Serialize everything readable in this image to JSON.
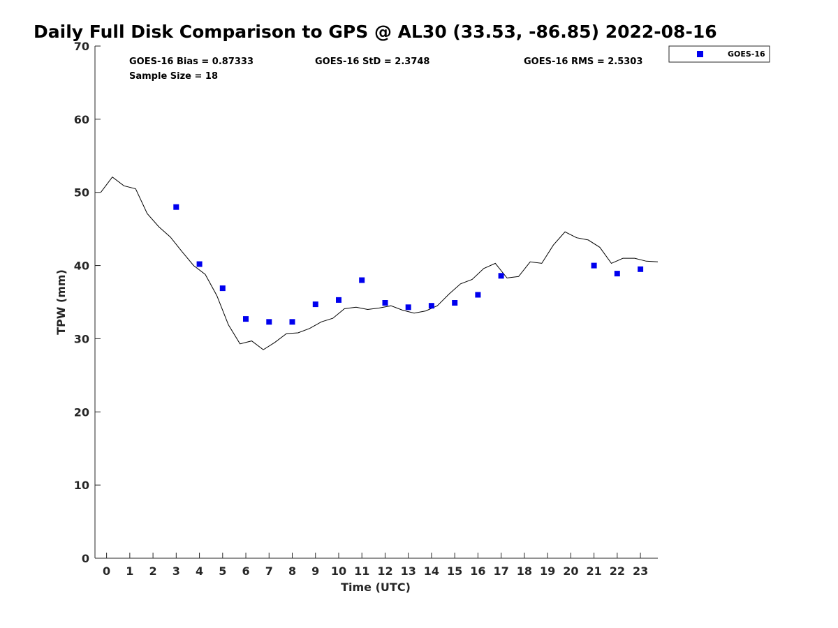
{
  "chart_data": {
    "type": "scatter",
    "title": "Daily Full Disk Comparison to GPS @ AL30 (33.53, -86.85) 2022-08-16",
    "xlabel": "Time (UTC)",
    "ylabel": "TPW (mm)",
    "xlim": [
      -0.5,
      23.75
    ],
    "ylim": [
      0,
      70
    ],
    "xticks": [
      0,
      1,
      2,
      3,
      4,
      5,
      6,
      7,
      8,
      9,
      10,
      11,
      12,
      13,
      14,
      15,
      16,
      17,
      18,
      19,
      20,
      21,
      22,
      23
    ],
    "yticks": [
      0,
      10,
      20,
      30,
      40,
      50,
      60,
      70
    ],
    "grid": false,
    "legend_position": "top-right, outside plot",
    "stats": {
      "bias": "GOES-16 Bias = 0.87333",
      "std": "GOES-16 StD = 2.3748",
      "rms": "GOES-16 RMS = 2.5303",
      "sample_size": "Sample Size = 18"
    },
    "series": [
      {
        "name": "GOES-16",
        "kind": "scatter",
        "marker": "square",
        "color": "#0000ee",
        "x": [
          3,
          4,
          5,
          6,
          7,
          8,
          9,
          10,
          11,
          12,
          13,
          14,
          15,
          16,
          17,
          21,
          22,
          23
        ],
        "y": [
          48.0,
          40.2,
          36.9,
          32.7,
          32.3,
          32.3,
          34.7,
          35.3,
          38.0,
          34.9,
          34.3,
          34.5,
          34.9,
          36.0,
          38.6,
          40.0,
          38.9,
          39.5
        ]
      },
      {
        "kind": "line",
        "color": "#000000",
        "x": [
          -0.25,
          0.25,
          0.75,
          1.25,
          1.75,
          2.25,
          2.75,
          3.25,
          3.75,
          4.25,
          4.75,
          5.25,
          5.75,
          6.25,
          6.75,
          7.25,
          7.75,
          8.25,
          8.75,
          9.25,
          9.75,
          10.25,
          10.75,
          11.25,
          11.75,
          12.25,
          12.75,
          13.25,
          13.75,
          14.25,
          14.75,
          15.25,
          15.75,
          16.25,
          16.75,
          17.25,
          17.75,
          18.25,
          18.75,
          19.25,
          19.75,
          20.25,
          20.75,
          21.25,
          21.75,
          22.25,
          22.75,
          23.25,
          23.75
        ],
        "y": [
          50.0,
          52.1,
          50.9,
          50.5,
          47.1,
          45.3,
          43.9,
          41.9,
          40.0,
          38.8,
          35.9,
          31.9,
          29.3,
          29.7,
          28.5,
          29.5,
          30.7,
          30.8,
          31.4,
          32.3,
          32.8,
          34.1,
          34.3,
          34.0,
          34.2,
          34.5,
          33.9,
          33.5,
          33.8,
          34.5,
          36.1,
          37.5,
          38.1,
          39.6,
          40.3,
          38.3,
          38.5,
          40.5,
          40.3,
          42.8,
          44.6,
          43.8,
          43.5,
          42.5,
          40.3,
          41.0,
          41.0,
          40.6,
          40.5
        ]
      }
    ]
  }
}
